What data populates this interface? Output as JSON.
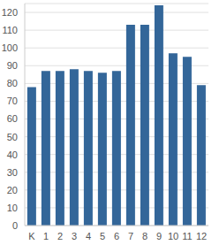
{
  "chart_data": {
    "type": "bar",
    "categories": [
      "K",
      "1",
      "2",
      "3",
      "4",
      "5",
      "6",
      "7",
      "8",
      "9",
      "10",
      "11",
      "12"
    ],
    "values": [
      78,
      87,
      87,
      88,
      87,
      86,
      87,
      113,
      113,
      124,
      97,
      95,
      79
    ],
    "color": "#336699",
    "ylim": [
      0,
      125
    ],
    "yticks": [
      0,
      10,
      20,
      30,
      40,
      50,
      60,
      70,
      80,
      90,
      100,
      110,
      120
    ],
    "grid": true
  }
}
